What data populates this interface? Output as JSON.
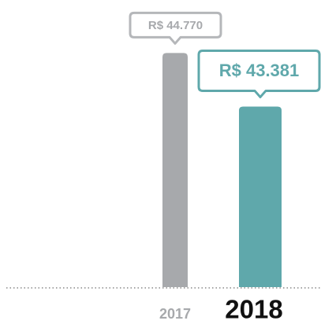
{
  "chart_data": {
    "type": "bar",
    "categories": [
      "2017",
      "2018"
    ],
    "values": [
      44770,
      43381
    ],
    "value_labels": [
      "R$ 44.770",
      "R$ 43.381"
    ],
    "colors": [
      "#a7a9ac",
      "#5fa8ab"
    ],
    "ylim": [
      38700,
      46000
    ]
  }
}
